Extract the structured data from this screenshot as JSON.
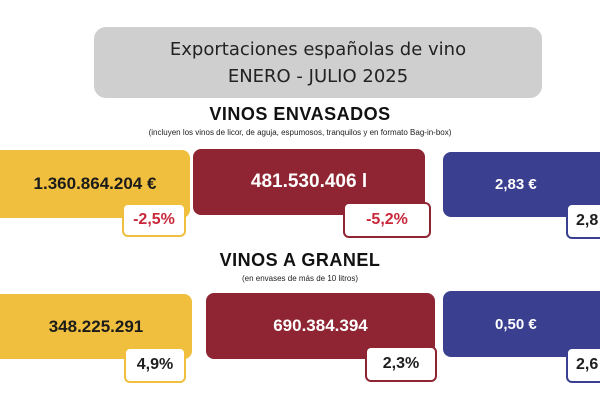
{
  "header": {
    "line1": "Exportaciones españolas de vino",
    "line2": "ENERO - JULIO 2025"
  },
  "envasados": {
    "title": "VINOS ENVASADOS",
    "subtitle": "(incluyen los vinos de licor, de aguja, espumosos, tranquilos y en formato Bag-in-box)",
    "value_card": {
      "value": "1.360.864.204 €",
      "change": "-2,5%"
    },
    "volume_card": {
      "value": "481.530.406 l",
      "change": "-5,2%"
    },
    "price_card": {
      "value": "2,83 €",
      "change": "2,8"
    }
  },
  "granel": {
    "title": "VINOS A GRANEL",
    "subtitle": "(en envases de más de 10 litros)",
    "value_card": {
      "value": "348.225.291",
      "change": "4,9%"
    },
    "volume_card": {
      "value": "690.384.394",
      "change": "2,3%"
    },
    "price_card": {
      "value": "0,50 €",
      "change": "2,6"
    }
  },
  "colors": {
    "yellow": "#f0bf3e",
    "red": "#8f2532",
    "blue": "#3a3f8f",
    "negative_text": "#c8283a"
  }
}
